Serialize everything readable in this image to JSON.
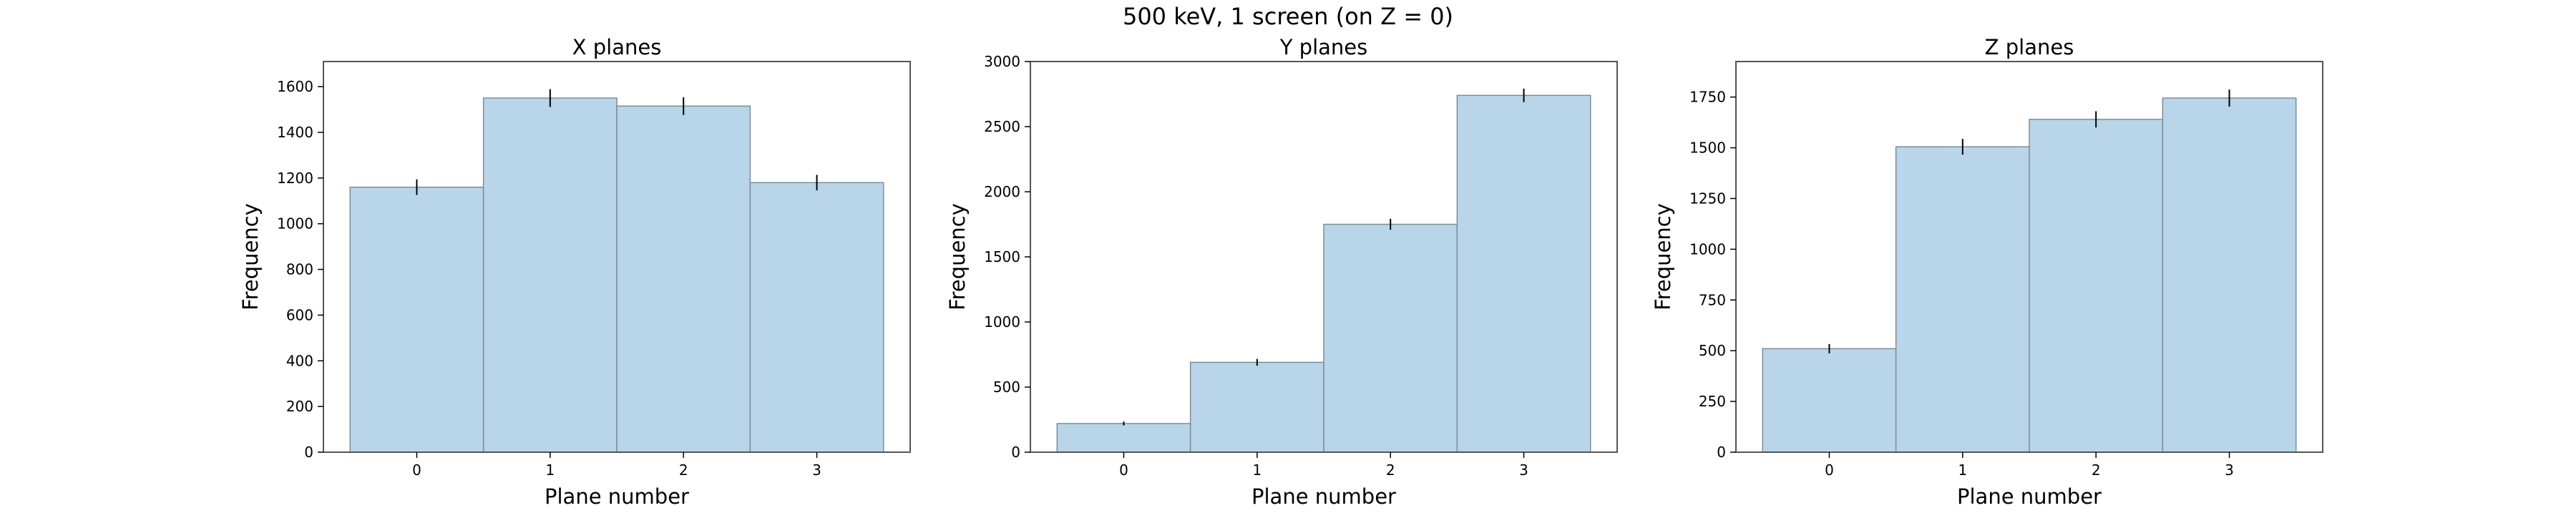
{
  "figure": {
    "title": "500 keV, 1 screen (on Z = 0)"
  },
  "colors": {
    "bar_fill": "#b9d5e9",
    "bar_edge": "#7d8c99",
    "error_bar": "#000000",
    "axes_frame": "#555555"
  },
  "chart_data": [
    {
      "type": "bar",
      "title": "X planes",
      "xlabel": "Plane number",
      "ylabel": "Frequency",
      "categories": [
        "0",
        "1",
        "2",
        "3"
      ],
      "values": [
        1160,
        1550,
        1515,
        1180
      ],
      "errors": [
        34,
        39,
        39,
        34
      ],
      "ylim": [
        0,
        1710
      ],
      "yticks": [
        0,
        200,
        400,
        600,
        800,
        1000,
        1200,
        1400,
        1600
      ],
      "grid": false
    },
    {
      "type": "bar",
      "title": "Y planes",
      "xlabel": "Plane number",
      "ylabel": "Frequency",
      "categories": [
        "0",
        "1",
        "2",
        "3"
      ],
      "values": [
        220,
        690,
        1750,
        2740
      ],
      "errors": [
        15,
        26,
        42,
        52
      ],
      "ylim": [
        0,
        3000
      ],
      "yticks": [
        0,
        500,
        1000,
        1500,
        2000,
        2500,
        3000
      ],
      "grid": false
    },
    {
      "type": "bar",
      "title": "Z planes",
      "xlabel": "Plane number",
      "ylabel": "Frequency",
      "categories": [
        "0",
        "1",
        "2",
        "3"
      ],
      "values": [
        510,
        1505,
        1640,
        1745
      ],
      "errors": [
        23,
        39,
        40,
        42
      ],
      "ylim": [
        0,
        1925
      ],
      "yticks": [
        0,
        250,
        500,
        750,
        1000,
        1250,
        1500,
        1750
      ],
      "grid": false
    }
  ]
}
